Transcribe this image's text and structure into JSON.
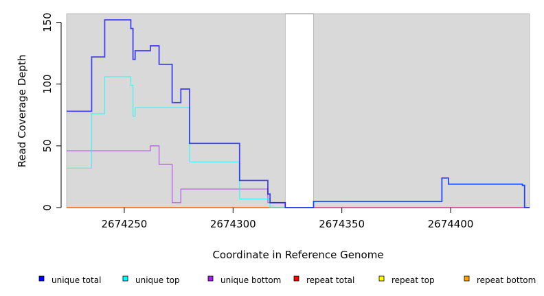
{
  "chart_data": {
    "type": "line",
    "title": "",
    "xlabel": "Coordinate in Reference Genome",
    "ylabel": "Read Coverage Depth",
    "xlim": [
      2674223.5,
      2674436.3
    ],
    "ylim": [
      0,
      157
    ],
    "xticks": [
      2674250,
      2674300,
      2674350,
      2674400
    ],
    "xtick_labels": [
      "2674250",
      "2674300",
      "2674350",
      "2674400"
    ],
    "yticks": [
      0,
      50,
      100,
      150
    ],
    "ytick_labels": [
      "0",
      "50",
      "100",
      "150"
    ],
    "shaded_regions": [
      [
        2674223.5,
        2674324
      ],
      [
        2674337,
        2674436.3
      ]
    ],
    "step": true,
    "series": [
      {
        "name": "unique total",
        "color": "#0000ff",
        "x": [
          2674223.5,
          2674235,
          2674241,
          2674253,
          2674254,
          2674255,
          2674262,
          2674266,
          2674272,
          2674276,
          2674280,
          2674303,
          2674316,
          2674317,
          2674324,
          2674337,
          2674396,
          2674399,
          2674433,
          2674434,
          2674436.3
        ],
        "y": [
          78,
          122,
          152,
          145,
          120,
          127,
          131,
          116,
          85,
          96,
          52,
          22,
          11,
          4,
          0,
          5,
          24,
          19,
          18,
          0,
          0
        ]
      },
      {
        "name": "unique top",
        "color": "#00ffff",
        "x": [
          2674223.5,
          2674235,
          2674241,
          2674253,
          2674254,
          2674255,
          2674280,
          2674303,
          2674317,
          2674324,
          2674337,
          2674396,
          2674399,
          2674433,
          2674434,
          2674436.3
        ],
        "y": [
          32,
          76,
          106,
          99,
          74,
          81,
          37,
          7,
          0,
          0,
          5,
          24,
          19,
          18,
          0,
          0
        ]
      },
      {
        "name": "unique bottom",
        "color": "#a020f0",
        "x": [
          2674223.5,
          2674262,
          2674266,
          2674272,
          2674276,
          2674316,
          2674324,
          2674436.3
        ],
        "y": [
          46,
          50,
          35,
          4,
          15,
          4,
          0,
          0
        ]
      },
      {
        "name": "repeat total",
        "color": "#ff0000",
        "x": [
          2674223.5,
          2674436.3
        ],
        "y": [
          0,
          0
        ]
      },
      {
        "name": "repeat top",
        "color": "#ffff00",
        "x": [
          2674223.5,
          2674436.3
        ],
        "y": [
          0,
          0
        ]
      },
      {
        "name": "repeat bottom",
        "color": "#ffa500",
        "x": [
          2674223.5,
          2674436.3
        ],
        "y": [
          0,
          0
        ]
      }
    ],
    "legend": "bottom"
  }
}
